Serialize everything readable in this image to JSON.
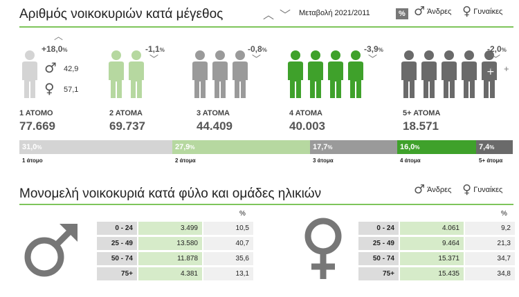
{
  "header": {
    "title": "Αριθμός νοικοκυριών κατά μέγεθος",
    "change_label": "Μεταβολή 2021/2011",
    "pct_label": "%",
    "men_label": "Άνδρες",
    "women_label": "Γυναίκες"
  },
  "households": [
    {
      "label": "1 ΑΤΟΜΟ",
      "value": "77.669",
      "change": "+18,0",
      "change_unit": "%",
      "direction": "up",
      "color": "#d4d4d4",
      "people": 1
    },
    {
      "label": "2 ΑΤΟΜΑ",
      "value": "69.737",
      "change": "-1,1",
      "change_unit": "%",
      "direction": "down",
      "color": "#b6d8a0",
      "people": 2
    },
    {
      "label": "3 ΑΤΟΜΑ",
      "value": "44.409",
      "change": "-0,8",
      "change_unit": "%",
      "direction": "down",
      "color": "#9a9a9a",
      "people": 3
    },
    {
      "label": "4 ΑΤΟΜΑ",
      "value": "40.003",
      "change": "-3,9",
      "change_unit": "%",
      "direction": "down",
      "color": "#3fa12b",
      "people": 4
    },
    {
      "label": "5+ ΑΤΟΜΑ",
      "value": "18.571",
      "change": "-2,0",
      "change_unit": "%",
      "direction": "down",
      "color": "#6a6a6a",
      "people": 5
    }
  ],
  "one_person_split": {
    "men": "42,9",
    "women": "57,1"
  },
  "plus_signs": [
    "+",
    "+",
    "+"
  ],
  "chart_data": {
    "type": "bar",
    "categories": [
      "1 άτομο",
      "2 άτομα",
      "3 άτομα",
      "4 άτομα",
      "5+ άτομα"
    ],
    "values": [
      31.0,
      27.9,
      17.7,
      16.0,
      7.4
    ],
    "value_labels": [
      "31,0",
      "27,9",
      "17,7",
      "16,0",
      "7,4"
    ],
    "unit": "%",
    "colors": [
      "#d4d4d4",
      "#b6d8a0",
      "#9a9a9a",
      "#3fa12b",
      "#6a6a6a"
    ],
    "stacked": true
  },
  "section2": {
    "title": "Μονομελή νοικοκυριά κατά φύλο και ομάδες ηλικιών",
    "men_label": "Άνδρες",
    "women_label": "Γυναίκες",
    "pct_header": "%"
  },
  "men_table": [
    {
      "age": "0 - 24",
      "count": "3.499",
      "pct": "10,5"
    },
    {
      "age": "25 - 49",
      "count": "13.580",
      "pct": "40,7"
    },
    {
      "age": "50 - 74",
      "count": "11.878",
      "pct": "35,6"
    },
    {
      "age": "75+",
      "count": "4.381",
      "pct": "13,1"
    }
  ],
  "women_table": [
    {
      "age": "0 - 24",
      "count": "4.061",
      "pct": "9,2"
    },
    {
      "age": "25 - 49",
      "count": "9.464",
      "pct": "21,3"
    },
    {
      "age": "50 - 74",
      "count": "15.371",
      "pct": "34,7"
    },
    {
      "age": "75+",
      "count": "15.435",
      "pct": "34,8"
    }
  ],
  "icons": {
    "male": "male-symbol-icon",
    "female": "female-symbol-icon",
    "person": "person-icon",
    "up": "chevron-up-icon",
    "down": "chevron-down-icon"
  }
}
